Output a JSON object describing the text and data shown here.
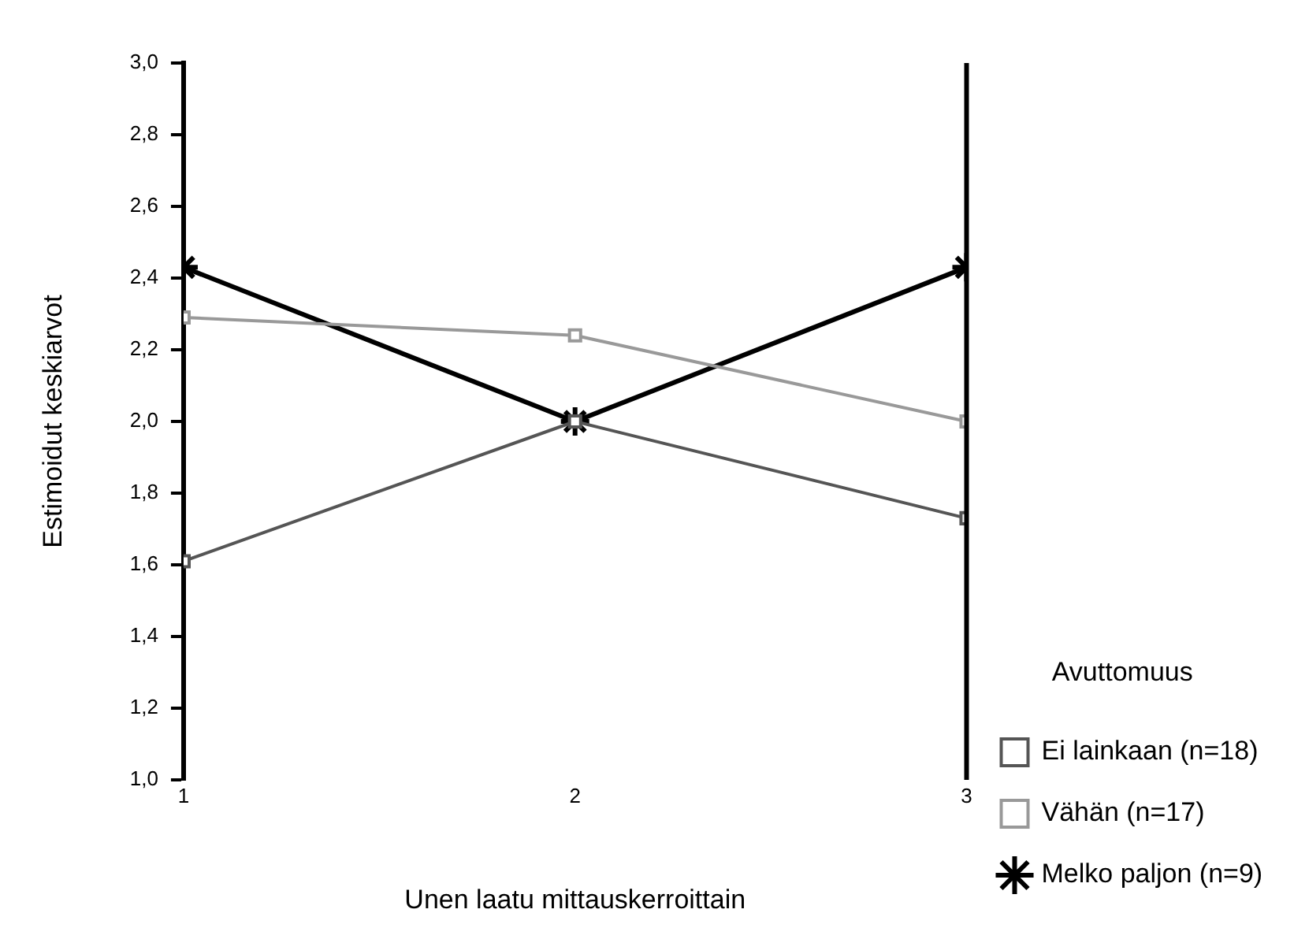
{
  "chart_data": {
    "type": "line",
    "xlabel": "Unen laatu mittauskerroittain",
    "ylabel": "Estimoidut keskiarvot",
    "legend_title": "Avuttomuus",
    "legend": "right",
    "grid": false,
    "x": [
      1,
      2,
      3
    ],
    "xlim": [
      1,
      3
    ],
    "xticks": [
      1,
      2,
      3
    ],
    "ylim": [
      1,
      3
    ],
    "yticks": [
      {
        "value": 1,
        "label": "1,0"
      },
      {
        "value": 1.2,
        "label": "1,2"
      },
      {
        "value": 1.4,
        "label": "1,4"
      },
      {
        "value": 1.6,
        "label": "1,6"
      },
      {
        "value": 1.8,
        "label": "1,8"
      },
      {
        "value": 2,
        "label": "2,0"
      },
      {
        "value": 2.2,
        "label": "2,2"
      },
      {
        "value": 2.4,
        "label": "2,4"
      },
      {
        "value": 2.6,
        "label": "2,6"
      },
      {
        "value": 2.8,
        "label": "2,8"
      },
      {
        "value": 3,
        "label": "3,0"
      }
    ],
    "series": [
      {
        "name": "Ei lainkaan (n=18)",
        "color": "#555555",
        "marker": "square",
        "values": [
          1.61,
          2.0,
          1.73
        ]
      },
      {
        "name": "Vähän (n=17)",
        "color": "#999999",
        "marker": "square",
        "values": [
          2.29,
          2.24,
          2.0
        ]
      },
      {
        "name": "Melko paljon (n=9)",
        "color": "#000000",
        "marker": "cross",
        "values": [
          2.43,
          2.0,
          2.43
        ]
      }
    ]
  }
}
